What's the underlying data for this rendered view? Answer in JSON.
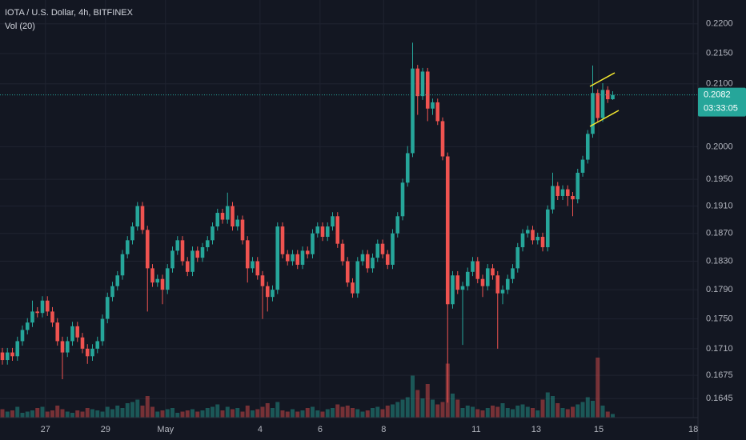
{
  "chart_data": {
    "type": "candlestick",
    "title": "IOTA / U.S. Dollar, 4h, BITFINEX",
    "subtitle": "Vol (20)",
    "log_scale": true,
    "grid": true,
    "up_color": "#26a69a",
    "down_color": "#ef5350",
    "ylim": [
      0.1621,
      0.2241
    ],
    "yticks": [
      {
        "value": 0.22,
        "label": "0.2200"
      },
      {
        "value": 0.215,
        "label": "0.2150"
      },
      {
        "value": 0.21,
        "label": "0.2100"
      },
      {
        "value": 0.2,
        "label": "0.2000"
      },
      {
        "value": 0.195,
        "label": "0.1950"
      },
      {
        "value": 0.191,
        "label": "0.1910"
      },
      {
        "value": 0.187,
        "label": "0.1870"
      },
      {
        "value": 0.183,
        "label": "0.1830"
      },
      {
        "value": 0.179,
        "label": "0.1790"
      },
      {
        "value": 0.175,
        "label": "0.1750"
      },
      {
        "value": 0.171,
        "label": "0.1710"
      },
      {
        "value": 0.1675,
        "label": "0.1675"
      },
      {
        "value": 0.1645,
        "label": "0.1645"
      }
    ],
    "xlim": [
      0,
      139
    ],
    "xticks": [
      {
        "value": 8.6,
        "label": "27"
      },
      {
        "value": 20.6,
        "label": "29"
      },
      {
        "value": 32.6,
        "label": "May"
      },
      {
        "value": 51.5,
        "label": "4"
      },
      {
        "value": 63.5,
        "label": "6"
      },
      {
        "value": 76.2,
        "label": "8"
      },
      {
        "value": 94.7,
        "label": "11"
      },
      {
        "value": 106.7,
        "label": "13"
      },
      {
        "value": 119.2,
        "label": "15"
      },
      {
        "value": 138.1,
        "label": "18"
      }
    ],
    "open": [
      0.1705,
      0.1695,
      0.1705,
      0.17,
      0.172,
      0.1735,
      0.1745,
      0.176,
      0.1758,
      0.1775,
      0.176,
      0.1745,
      0.172,
      0.1705,
      0.172,
      0.174,
      0.1725,
      0.171,
      0.17,
      0.171,
      0.172,
      0.175,
      0.178,
      0.1795,
      0.181,
      0.184,
      0.186,
      0.188,
      0.191,
      0.1875,
      0.182,
      0.18,
      0.1805,
      0.179,
      0.182,
      0.1845,
      0.186,
      0.183,
      0.1815,
      0.1845,
      0.1835,
      0.185,
      0.186,
      0.188,
      0.19,
      0.189,
      0.191,
      0.188,
      0.189,
      0.186,
      0.182,
      0.183,
      0.181,
      0.1795,
      0.178,
      0.179,
      0.188,
      0.184,
      0.183,
      0.184,
      0.1825,
      0.1845,
      0.184,
      0.187,
      0.188,
      0.1865,
      0.188,
      0.1895,
      0.1855,
      0.183,
      0.18,
      0.1785,
      0.183,
      0.184,
      0.182,
      0.1835,
      0.1855,
      0.184,
      0.1825,
      0.187,
      0.1895,
      0.1945,
      0.199,
      0.2125,
      0.208,
      0.212,
      0.206,
      0.207,
      0.204,
      0.1985,
      0.177,
      0.181,
      0.179,
      0.1795,
      0.1815,
      0.183,
      0.1805,
      0.1795,
      0.182,
      0.181,
      0.1785,
      0.179,
      0.1805,
      0.182,
      0.185,
      0.187,
      0.1875,
      0.186,
      0.1865,
      0.185,
      0.1905,
      0.194,
      0.1925,
      0.1935,
      0.1925,
      0.192,
      0.196,
      0.198,
      0.202,
      0.2085,
      0.2045,
      0.209,
      0.2075
    ],
    "high": [
      0.1711,
      0.1711,
      0.1711,
      0.1726,
      0.1741,
      0.1751,
      0.1775,
      0.1766,
      0.1781,
      0.1781,
      0.1766,
      0.1751,
      0.1726,
      0.1726,
      0.1746,
      0.1746,
      0.1731,
      0.1716,
      0.1716,
      0.1726,
      0.1756,
      0.1786,
      0.1801,
      0.1816,
      0.1846,
      0.1866,
      0.1886,
      0.1916,
      0.1916,
      0.1881,
      0.1826,
      0.1811,
      0.1811,
      0.1826,
      0.1851,
      0.1866,
      0.1866,
      0.1836,
      0.1851,
      0.1851,
      0.1856,
      0.1866,
      0.1886,
      0.1906,
      0.1906,
      0.193,
      0.1916,
      0.1896,
      0.1896,
      0.1866,
      0.1836,
      0.1836,
      0.1816,
      0.1801,
      0.1796,
      0.1886,
      0.1886,
      0.1846,
      0.1846,
      0.1846,
      0.1851,
      0.1851,
      0.1876,
      0.1886,
      0.1886,
      0.1886,
      0.1901,
      0.1901,
      0.1861,
      0.1836,
      0.1806,
      0.1836,
      0.1846,
      0.1846,
      0.1841,
      0.1861,
      0.1861,
      0.1846,
      0.1876,
      0.1901,
      0.1951,
      0.2001,
      0.2168,
      0.2131,
      0.2126,
      0.2126,
      0.2076,
      0.2076,
      0.2046,
      0.1991,
      0.1816,
      0.1816,
      0.1801,
      0.1821,
      0.1836,
      0.1836,
      0.1811,
      0.1826,
      0.1826,
      0.1816,
      0.1796,
      0.1811,
      0.1826,
      0.1856,
      0.1876,
      0.1881,
      0.1881,
      0.1871,
      0.1871,
      0.1911,
      0.196,
      0.1946,
      0.1941,
      0.1941,
      0.1931,
      0.1966,
      0.1986,
      0.2026,
      0.213,
      0.2091,
      0.2101,
      0.2096,
      0.2088
    ],
    "low": [
      0.1689,
      0.1689,
      0.1694,
      0.1694,
      0.1714,
      0.1729,
      0.1739,
      0.1752,
      0.1752,
      0.1754,
      0.1739,
      0.1714,
      0.167,
      0.1699,
      0.1714,
      0.1719,
      0.1704,
      0.169,
      0.1694,
      0.1704,
      0.1714,
      0.1744,
      0.1774,
      0.1789,
      0.1804,
      0.1834,
      0.1854,
      0.1874,
      0.1869,
      0.176,
      0.1794,
      0.1794,
      0.177,
      0.1784,
      0.1814,
      0.1839,
      0.1824,
      0.1809,
      0.1809,
      0.1829,
      0.1829,
      0.1844,
      0.1854,
      0.1874,
      0.1884,
      0.1884,
      0.1874,
      0.1874,
      0.1854,
      0.18,
      0.1814,
      0.1804,
      0.175,
      0.176,
      0.1774,
      0.1784,
      0.1834,
      0.1824,
      0.1824,
      0.1819,
      0.1819,
      0.1834,
      0.1834,
      0.1864,
      0.1859,
      0.1859,
      0.1874,
      0.1849,
      0.1824,
      0.1794,
      0.1779,
      0.1779,
      0.1824,
      0.1814,
      0.1814,
      0.1829,
      0.1834,
      0.1819,
      0.1819,
      0.1864,
      0.1889,
      0.1939,
      0.1984,
      0.205,
      0.2074,
      0.204,
      0.205,
      0.2034,
      0.1979,
      0.164,
      0.1764,
      0.1784,
      0.1715,
      0.1789,
      0.1809,
      0.1799,
      0.178,
      0.1789,
      0.1804,
      0.171,
      0.177,
      0.1784,
      0.1799,
      0.1814,
      0.1844,
      0.1864,
      0.1854,
      0.1854,
      0.1844,
      0.1844,
      0.1899,
      0.1919,
      0.1919,
      0.191,
      0.1895,
      0.1914,
      0.1954,
      0.1974,
      0.2014,
      0.2039,
      0.2039,
      0.2069,
      0.2074
    ],
    "close": [
      0.1695,
      0.1705,
      0.17,
      0.172,
      0.1735,
      0.1745,
      0.176,
      0.1758,
      0.1775,
      0.176,
      0.1745,
      0.172,
      0.1705,
      0.172,
      0.174,
      0.1725,
      0.171,
      0.17,
      0.171,
      0.172,
      0.175,
      0.178,
      0.1795,
      0.181,
      0.184,
      0.186,
      0.188,
      0.191,
      0.1875,
      0.182,
      0.18,
      0.1805,
      0.179,
      0.182,
      0.1845,
      0.186,
      0.183,
      0.1815,
      0.1845,
      0.1835,
      0.185,
      0.186,
      0.188,
      0.19,
      0.189,
      0.191,
      0.188,
      0.189,
      0.186,
      0.182,
      0.183,
      0.181,
      0.1795,
      0.178,
      0.179,
      0.188,
      0.184,
      0.183,
      0.184,
      0.1825,
      0.1845,
      0.184,
      0.187,
      0.188,
      0.1865,
      0.188,
      0.1895,
      0.1855,
      0.183,
      0.18,
      0.1785,
      0.183,
      0.184,
      0.182,
      0.1835,
      0.1855,
      0.184,
      0.1825,
      0.187,
      0.1895,
      0.1945,
      0.199,
      0.2125,
      0.208,
      0.212,
      0.206,
      0.207,
      0.204,
      0.1985,
      0.177,
      0.181,
      0.179,
      0.1795,
      0.1815,
      0.183,
      0.1805,
      0.1795,
      0.182,
      0.181,
      0.1785,
      0.179,
      0.1805,
      0.182,
      0.185,
      0.187,
      0.1875,
      0.186,
      0.1865,
      0.185,
      0.1905,
      0.194,
      0.1925,
      0.1935,
      0.1925,
      0.192,
      0.196,
      0.198,
      0.202,
      0.2085,
      0.2045,
      0.209,
      0.2075,
      0.2082
    ],
    "volume": [
      14,
      10,
      12,
      18,
      8,
      10,
      12,
      16,
      18,
      10,
      12,
      20,
      14,
      10,
      8,
      12,
      10,
      16,
      14,
      12,
      10,
      18,
      14,
      20,
      16,
      24,
      26,
      30,
      20,
      36,
      18,
      10,
      12,
      14,
      16,
      8,
      10,
      12,
      14,
      10,
      12,
      16,
      18,
      22,
      12,
      18,
      14,
      16,
      10,
      20,
      12,
      14,
      18,
      24,
      16,
      26,
      12,
      10,
      14,
      10,
      12,
      16,
      18,
      12,
      10,
      14,
      16,
      22,
      18,
      20,
      16,
      14,
      10,
      12,
      16,
      18,
      14,
      20,
      22,
      26,
      30,
      34,
      70,
      46,
      32,
      56,
      30,
      22,
      26,
      90,
      40,
      30,
      16,
      20,
      18,
      14,
      12,
      16,
      20,
      18,
      24,
      16,
      14,
      20,
      22,
      18,
      16,
      12,
      30,
      42,
      36,
      24,
      16,
      14,
      18,
      22,
      26,
      34,
      28,
      100,
      20,
      10,
      6
    ],
    "vlim": [
      0,
      100
    ],
    "last_price": 0.2082,
    "countdown": "03:33:05"
  }
}
